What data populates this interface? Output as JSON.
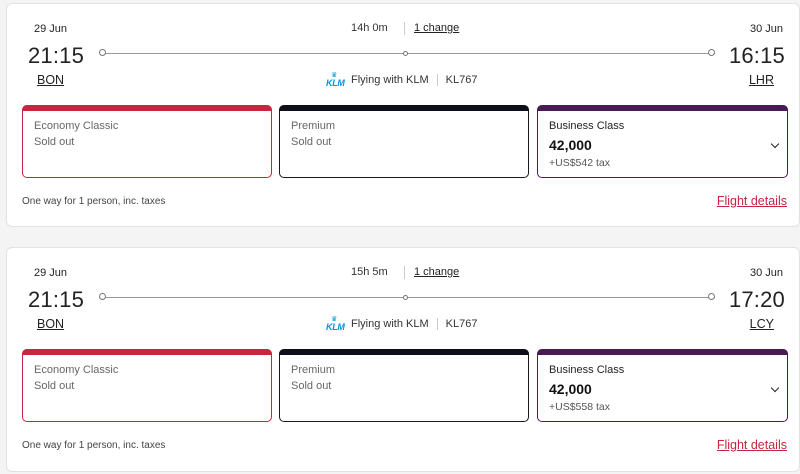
{
  "carrier_label": "Flying with KLM",
  "carrier_logo_text": "KLM",
  "fare_note": "One way for 1 person, inc. taxes",
  "details_link": "Flight details",
  "colors": {
    "economy": "#c8253e",
    "premium": "#0e0f1a",
    "business": "#4a1a55",
    "link": "#c8253e"
  },
  "flights": [
    {
      "dep_date": "29 Jun",
      "dep_time": "21:15",
      "dep_code": "BON",
      "arr_date": "30 Jun",
      "arr_time": "16:15",
      "arr_code": "LHR",
      "duration": "14h 0m",
      "changes": "1 change",
      "flight_number": "KL767",
      "fares": {
        "economy": {
          "name": "Economy Classic",
          "status": "Sold out"
        },
        "premium": {
          "name": "Premium",
          "status": "Sold out"
        },
        "business": {
          "name": "Business Class",
          "points": "42,000",
          "tax": "+US$542 tax"
        }
      }
    },
    {
      "dep_date": "29 Jun",
      "dep_time": "21:15",
      "dep_code": "BON",
      "arr_date": "30 Jun",
      "arr_time": "17:20",
      "arr_code": "LCY",
      "duration": "15h 5m",
      "changes": "1 change",
      "flight_number": "KL767",
      "fares": {
        "economy": {
          "name": "Economy Classic",
          "status": "Sold out"
        },
        "premium": {
          "name": "Premium",
          "status": "Sold out"
        },
        "business": {
          "name": "Business Class",
          "points": "42,000",
          "tax": "+US$558 tax"
        }
      }
    }
  ]
}
